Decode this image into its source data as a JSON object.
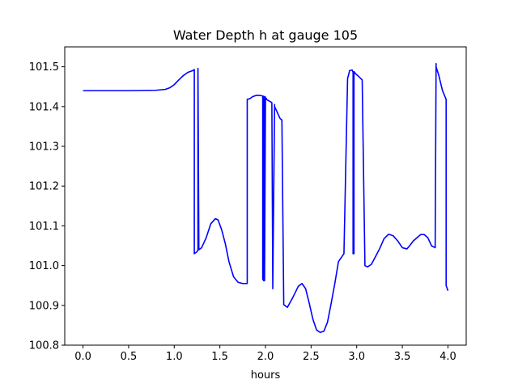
{
  "chart_data": {
    "type": "line",
    "title": "Water Depth h at gauge 105",
    "xlabel": "hours",
    "ylabel": "",
    "xlim": [
      -0.2,
      4.2
    ],
    "ylim": [
      100.8,
      101.55
    ],
    "xticks": [
      0.0,
      0.5,
      1.0,
      1.5,
      2.0,
      2.5,
      3.0,
      3.5,
      4.0
    ],
    "xtick_labels": [
      "0.0",
      "0.5",
      "1.0",
      "1.5",
      "2.0",
      "2.5",
      "3.0",
      "3.5",
      "4.0"
    ],
    "yticks": [
      100.8,
      100.9,
      101.0,
      101.1,
      101.2,
      101.3,
      101.4,
      101.5
    ],
    "ytick_labels": [
      "100.8",
      "100.9",
      "101.0",
      "101.1",
      "101.2",
      "101.3",
      "101.4",
      "101.5"
    ],
    "grid": false,
    "series": [
      {
        "color": "#0000ff",
        "x": [
          0.0,
          0.5,
          0.8,
          0.9,
          0.95,
          1.0,
          1.05,
          1.1,
          1.15,
          1.2,
          1.22,
          1.22,
          1.25,
          1.26,
          1.26,
          1.27,
          1.3,
          1.35,
          1.4,
          1.45,
          1.48,
          1.52,
          1.56,
          1.6,
          1.65,
          1.7,
          1.75,
          1.8,
          1.8,
          1.83,
          1.86,
          1.9,
          1.93,
          1.96,
          1.97,
          1.97,
          1.98,
          1.98,
          1.99,
          1.99,
          2.0,
          2.0,
          2.01,
          2.01,
          2.04,
          2.07,
          2.08,
          2.08,
          2.1,
          2.1,
          2.13,
          2.16,
          2.18,
          2.2,
          2.2,
          2.24,
          2.3,
          2.36,
          2.4,
          2.44,
          2.48,
          2.52,
          2.56,
          2.6,
          2.64,
          2.68,
          2.72,
          2.76,
          2.8,
          2.86,
          2.9,
          2.92,
          2.92,
          2.95,
          2.96,
          2.96,
          2.97,
          2.97,
          2.99,
          3.02,
          3.06,
          3.09,
          3.09,
          3.12,
          3.16,
          3.2,
          3.25,
          3.3,
          3.35,
          3.4,
          3.45,
          3.5,
          3.55,
          3.58,
          3.62,
          3.66,
          3.7,
          3.74,
          3.78,
          3.82,
          3.86,
          3.87,
          3.87,
          3.9,
          3.94,
          3.98,
          3.98,
          4.0
        ],
        "y": [
          101.44,
          101.44,
          101.441,
          101.443,
          101.447,
          101.455,
          101.467,
          101.478,
          101.486,
          101.49,
          101.493,
          101.03,
          101.035,
          101.04,
          101.496,
          101.04,
          101.045,
          101.07,
          101.105,
          101.118,
          101.115,
          101.09,
          101.055,
          101.01,
          100.972,
          100.958,
          100.955,
          100.955,
          101.418,
          101.42,
          101.425,
          101.428,
          101.428,
          101.427,
          101.426,
          100.965,
          101.426,
          100.962,
          101.425,
          100.962,
          101.424,
          101.422,
          101.42,
          101.418,
          101.414,
          101.41,
          100.948,
          100.942,
          101.405,
          101.4,
          101.385,
          101.37,
          101.366,
          100.91,
          100.902,
          100.895,
          100.92,
          100.948,
          100.955,
          100.942,
          100.905,
          100.865,
          100.838,
          100.832,
          100.835,
          100.858,
          100.905,
          100.955,
          101.01,
          101.03,
          101.47,
          101.488,
          101.49,
          101.492,
          101.486,
          101.03,
          101.03,
          101.488,
          101.482,
          101.476,
          101.467,
          101.003,
          101.0,
          100.997,
          101.003,
          101.02,
          101.042,
          101.068,
          101.079,
          101.075,
          101.062,
          101.045,
          101.042,
          101.05,
          101.062,
          101.07,
          101.078,
          101.078,
          101.07,
          101.05,
          101.045,
          101.508,
          101.5,
          101.478,
          101.44,
          101.418,
          100.95,
          100.937
        ]
      }
    ]
  }
}
